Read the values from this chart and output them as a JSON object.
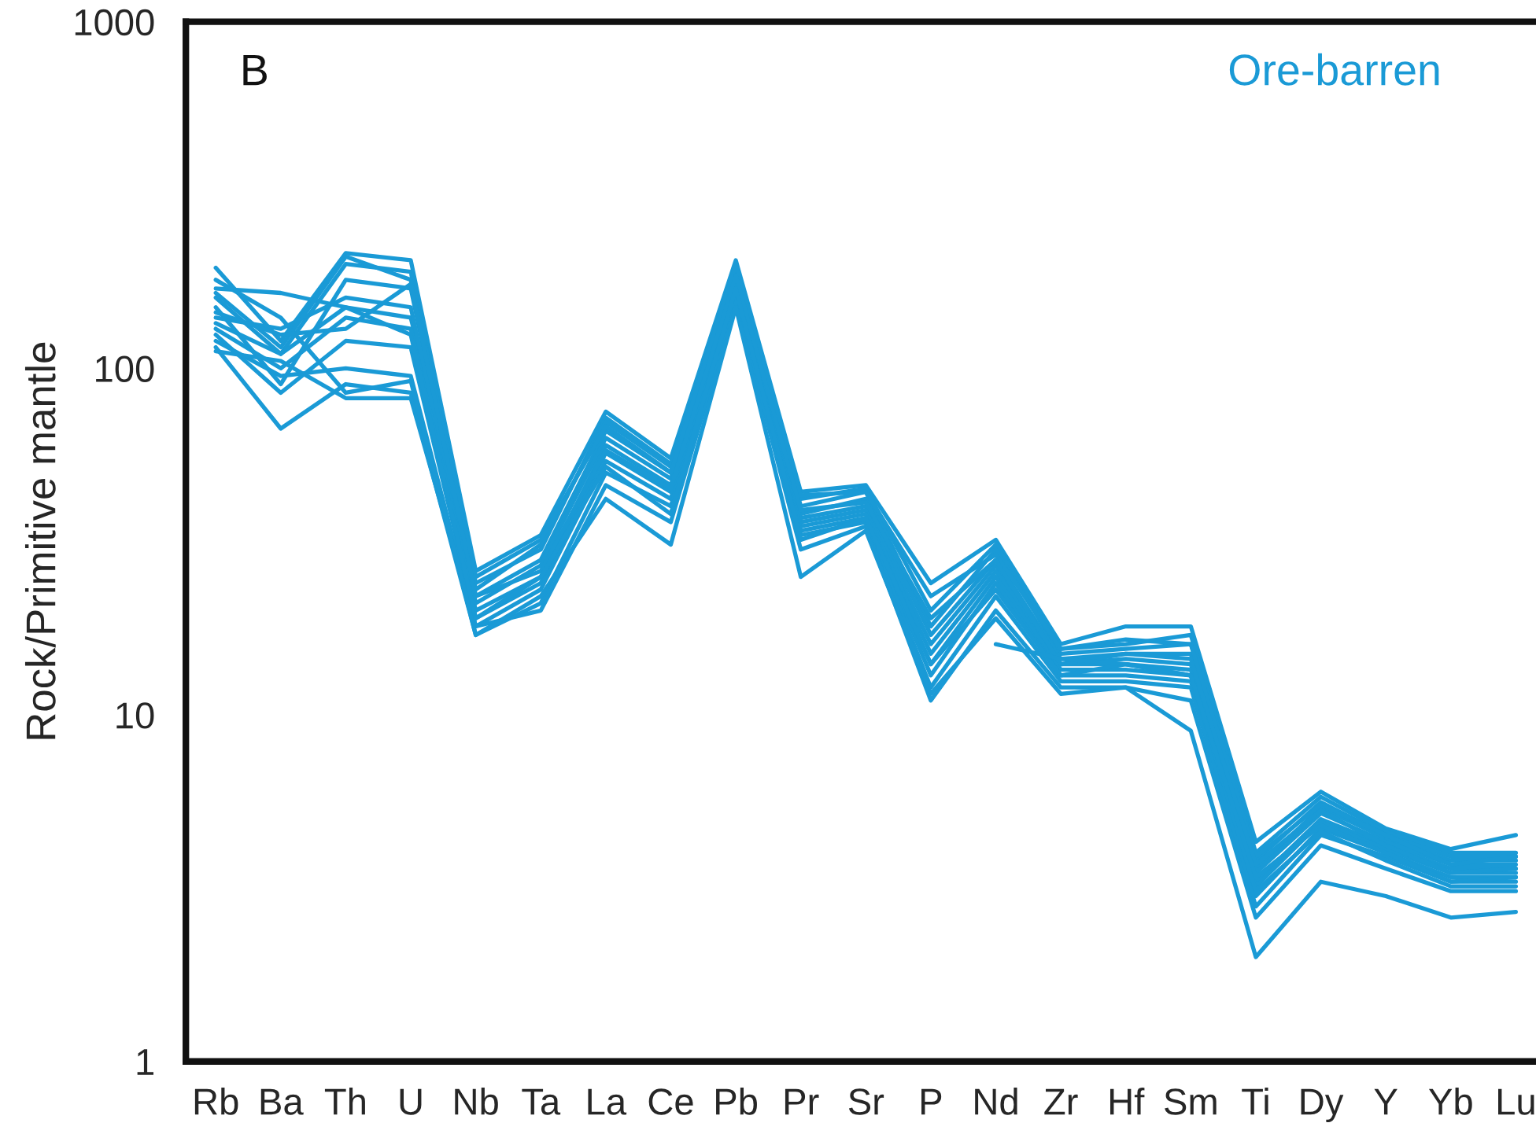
{
  "chart_data": {
    "type": "line",
    "ylabel": "Rock/Primitive mantle",
    "log": "y",
    "grid": false,
    "legend": false,
    "marker": "none",
    "line_style": "solid",
    "annotations": [
      "B",
      "Ore-barren"
    ],
    "categories": [
      "Rb",
      "Ba",
      "Th",
      "U",
      "Nb",
      "Ta",
      "La",
      "Ce",
      "Pb",
      "Pr",
      "Sr",
      "P",
      "Nd",
      "Zr",
      "Hf",
      "Sm",
      "Ti",
      "Dy",
      "Y",
      "Yb",
      "Lu"
    ],
    "ylim": [
      1,
      1000
    ],
    "yticks": [
      1,
      10,
      100,
      1000
    ],
    "series": [
      {
        "color": "#1a9ad6",
        "values": [
          195,
          120,
          215,
          205,
          26,
          33,
          75,
          55,
          205,
          44,
          46,
          24,
          32,
          16,
          18,
          18,
          4.3,
          6.0,
          4.7,
          4.1,
          4.5
        ]
      },
      {
        "color": "#1a9ad6",
        "values": [
          170,
          165,
          150,
          140,
          24,
          30,
          72,
          53,
          195,
          42,
          45,
          20,
          31,
          15.5,
          16,
          17,
          4.0,
          5.8,
          4.6,
          4.0,
          4.0
        ]
      },
      {
        "color": "#1a9ad6",
        "values": [
          160,
          110,
          200,
          190,
          23,
          31,
          70,
          52,
          190,
          40,
          44,
          18,
          30,
          15,
          15.5,
          16,
          3.8,
          5.6,
          4.5,
          3.9,
          3.9
        ]
      },
      {
        "color": "#1a9ad6",
        "values": [
          150,
          90,
          180,
          170,
          22,
          28,
          66,
          50,
          185,
          38,
          42,
          17,
          28,
          14.5,
          15,
          15,
          3.6,
          5.4,
          4.4,
          3.8,
          3.8
        ]
      },
      {
        "color": "#1a9ad6",
        "values": [
          140,
          130,
          160,
          150,
          21,
          27,
          63,
          48,
          180,
          37,
          40,
          16,
          27,
          14,
          14.5,
          14,
          3.5,
          5.2,
          4.3,
          3.7,
          3.7
        ]
      },
      {
        "color": "#1a9ad6",
        "values": [
          130,
          100,
          140,
          130,
          20,
          25,
          60,
          46,
          175,
          36,
          39,
          15,
          26,
          14,
          14,
          13.5,
          3.3,
          5.0,
          4.2,
          3.6,
          3.6
        ]
      },
      {
        "color": "#1a9ad6",
        "values": [
          125,
          85,
          120,
          115,
          19,
          24,
          57,
          44,
          170,
          35,
          38,
          14,
          25,
          13.5,
          13.5,
          13,
          3.2,
          4.9,
          4.1,
          3.5,
          3.5
        ]
      },
      {
        "color": "#1a9ad6",
        "values": [
          120,
          95,
          100,
          95,
          18,
          23,
          54,
          42,
          165,
          34,
          37,
          13,
          24,
          13,
          13,
          12.5,
          3.0,
          4.7,
          4.0,
          3.4,
          3.4
        ]
      },
      {
        "color": "#1a9ad6",
        "values": [
          115,
          67,
          90,
          85,
          17,
          21,
          50,
          40,
          160,
          33,
          36,
          12,
          22,
          12.5,
          12.5,
          12,
          2.8,
          4.5,
          3.9,
          3.3,
          3.3
        ]
      },
      {
        "color": "#1a9ad6",
        "values": [
          112,
          105,
          82,
          82,
          18,
          20,
          46,
          36,
          155,
          30,
          35,
          11,
          20,
          12,
          12,
          11,
          2.6,
          4.2,
          3.6,
          3.1,
          3.1
        ]
      },
      {
        "color": "#1a9ad6",
        "values": [
          180,
          140,
          85,
          92,
          17,
          22,
          42,
          31,
          150,
          25,
          34,
          11.5,
          19,
          11.5,
          12,
          9,
          2.0,
          3.3,
          3.0,
          2.6,
          2.7
        ]
      },
      {
        "color": "#1a9ad6",
        "values": [
          165,
          115,
          210,
          180,
          25,
          32,
          68,
          50,
          200,
          43,
          44,
          22,
          29,
          15.5,
          16.5,
          16,
          3.9,
          5.5,
          4.5,
          3.7,
          3.9
        ]
      },
      {
        "color": "#1a9ad6",
        "values": [
          145,
          125,
          130,
          175,
          22,
          26,
          58,
          45,
          185,
          39,
          41,
          19,
          28,
          14,
          15,
          14.5,
          3.7,
          5.3,
          4.2,
          3.5,
          3.6
        ]
      },
      {
        "color": "#1a9ad6",
        "values": [
          135,
          110,
          150,
          125,
          19,
          25,
          52,
          38,
          170,
          32,
          37,
          14,
          23,
          13,
          14,
          13,
          3.1,
          4.6,
          3.8,
          3.2,
          3.2
        ]
      },
      {
        "color": "#1a9ad6",
        "values": [
          null,
          null,
          null,
          null,
          null,
          null,
          null,
          null,
          null,
          null,
          null,
          null,
          16,
          14.5,
          14,
          13,
          3.4,
          4.8,
          4.0,
          3.3,
          3.4
        ]
      }
    ]
  }
}
